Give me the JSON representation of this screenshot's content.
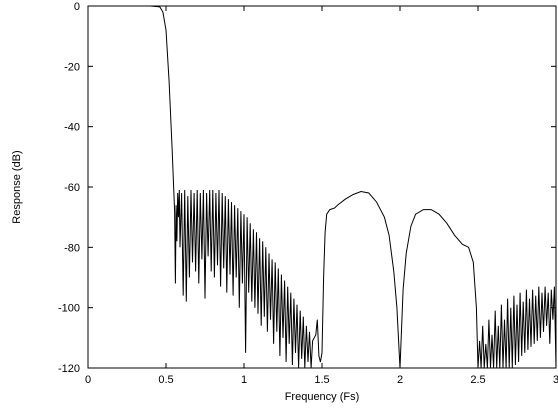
{
  "chart_data": {
    "type": "line",
    "title": "",
    "xlabel": "Frequency (Fs)",
    "ylabel": "Response (dB)",
    "xlim": [
      0,
      3
    ],
    "ylim": [
      -120,
      0
    ],
    "grid": false,
    "legend": "none",
    "x_ticks": [
      0,
      0.5,
      1,
      1.5,
      2,
      2.5,
      3
    ],
    "x_tick_labels": [
      "0",
      "0.5",
      "1",
      "1.5",
      "2",
      "2.5",
      "3"
    ],
    "y_ticks": [
      0,
      -20,
      -40,
      -60,
      -80,
      -100,
      -120
    ],
    "y_tick_labels": [
      "0",
      "-20",
      "-40",
      "-60",
      "-80",
      "-100",
      "-120"
    ],
    "series": [
      {
        "color": "#000000",
        "x": [
          0,
          0.1,
          0.2,
          0.3,
          0.4,
          0.46,
          0.48,
          0.5,
          0.52,
          0.54,
          0.555,
          0.56,
          0.565,
          0.57,
          0.575,
          0.58,
          0.585,
          0.59,
          0.6,
          0.61,
          0.62,
          0.63,
          0.64,
          0.65,
          0.66,
          0.67,
          0.68,
          0.69,
          0.7,
          0.71,
          0.72,
          0.73,
          0.74,
          0.75,
          0.76,
          0.77,
          0.78,
          0.79,
          0.8,
          0.81,
          0.82,
          0.83,
          0.84,
          0.85,
          0.86,
          0.87,
          0.88,
          0.89,
          0.9,
          0.91,
          0.92,
          0.93,
          0.94,
          0.95,
          0.96,
          0.97,
          0.98,
          0.99,
          1.0,
          1.01,
          1.02,
          1.03,
          1.04,
          1.05,
          1.06,
          1.07,
          1.08,
          1.09,
          1.1,
          1.11,
          1.12,
          1.13,
          1.14,
          1.15,
          1.16,
          1.17,
          1.18,
          1.19,
          1.2,
          1.21,
          1.22,
          1.23,
          1.24,
          1.25,
          1.26,
          1.27,
          1.28,
          1.29,
          1.3,
          1.31,
          1.32,
          1.33,
          1.34,
          1.35,
          1.36,
          1.37,
          1.38,
          1.39,
          1.4,
          1.41,
          1.42,
          1.43,
          1.44,
          1.45,
          1.46,
          1.47,
          1.48,
          1.49,
          1.5,
          1.51,
          1.52,
          1.53,
          1.55,
          1.58,
          1.6,
          1.65,
          1.7,
          1.75,
          1.8,
          1.85,
          1.9,
          1.93,
          1.96,
          1.98,
          2.0,
          2.02,
          2.04,
          2.07,
          2.1,
          2.15,
          2.2,
          2.25,
          2.3,
          2.35,
          2.4,
          2.44,
          2.47,
          2.49,
          2.5,
          2.51,
          2.52,
          2.53,
          2.54,
          2.55,
          2.56,
          2.57,
          2.58,
          2.59,
          2.6,
          2.61,
          2.62,
          2.63,
          2.64,
          2.65,
          2.66,
          2.67,
          2.68,
          2.69,
          2.7,
          2.71,
          2.72,
          2.73,
          2.74,
          2.75,
          2.76,
          2.77,
          2.78,
          2.79,
          2.8,
          2.81,
          2.82,
          2.83,
          2.84,
          2.85,
          2.86,
          2.87,
          2.88,
          2.89,
          2.9,
          2.91,
          2.92,
          2.93,
          2.94,
          2.95,
          2.96,
          2.97,
          2.98,
          2.99,
          3.0
        ],
        "y": [
          0,
          0,
          0,
          0,
          0,
          -0.3,
          -2,
          -8,
          -25,
          -48,
          -68,
          -92,
          -66,
          -78,
          -62,
          -70,
          -61,
          -80,
          -62,
          -96,
          -61,
          -98,
          -63,
          -90,
          -61,
          -85,
          -62,
          -88,
          -61,
          -92,
          -62,
          -84,
          -61,
          -97,
          -62,
          -83,
          -61,
          -88,
          -61,
          -90,
          -62,
          -86,
          -61,
          -93,
          -62,
          -87,
          -63,
          -95,
          -64,
          -89,
          -65,
          -96,
          -66,
          -90,
          -67,
          -100,
          -68,
          -92,
          -69,
          -115,
          -70,
          -95,
          -72,
          -98,
          -74,
          -100,
          -75,
          -102,
          -77,
          -106,
          -78,
          -103,
          -80,
          -108,
          -82,
          -104,
          -84,
          -112,
          -85,
          -108,
          -87,
          -116,
          -89,
          -110,
          -91,
          -118,
          -93,
          -112,
          -95,
          -119,
          -97,
          -115,
          -99,
          -120,
          -101,
          -117,
          -103,
          -120,
          -106,
          -118,
          -108,
          -120,
          -111,
          -110,
          -109,
          -104,
          -116,
          -118,
          -115,
          -90,
          -75,
          -69,
          -67.5,
          -67,
          -66,
          -64,
          -62.5,
          -61.5,
          -62,
          -65,
          -70,
          -76,
          -88,
          -100,
          -120,
          -94,
          -82,
          -73,
          -69,
          -67.5,
          -67.5,
          -69,
          -72,
          -76,
          -79,
          -80,
          -85,
          -100,
          -120,
          -111,
          -120,
          -106,
          -120,
          -112,
          -120,
          -104,
          -120,
          -109,
          -120,
          -101,
          -120,
          -106,
          -120,
          -99,
          -120,
          -104,
          -120,
          -97,
          -120,
          -100,
          -120,
          -96,
          -119,
          -99,
          -118,
          -95,
          -116,
          -98,
          -115,
          -94,
          -114,
          -97,
          -113,
          -94,
          -112,
          -96,
          -111,
          -93,
          -110,
          -95,
          -108,
          -93,
          -106,
          -95,
          -112,
          -94,
          -104,
          -93,
          -120
        ]
      }
    ]
  }
}
